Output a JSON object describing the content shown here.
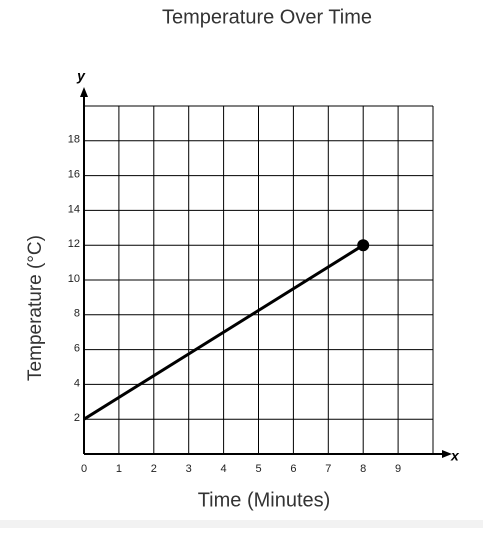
{
  "chart_data": {
    "type": "line",
    "title": "Temperature Over Time",
    "x_label": "Time (Minutes)",
    "y_label": "Temperature (°C)",
    "x_axis_name": "x",
    "y_axis_name": "y",
    "x": [
      0,
      8
    ],
    "series": [
      {
        "color": "#000000",
        "values": [
          2,
          12
        ]
      }
    ],
    "xlim": [
      0,
      10
    ],
    "ylim": [
      0,
      20
    ],
    "xticks": [
      0,
      1,
      2,
      3,
      4,
      5,
      6,
      7,
      8,
      9
    ],
    "yticks": [
      2,
      4,
      6,
      8,
      10,
      12,
      14,
      16,
      18
    ],
    "grid": true
  }
}
